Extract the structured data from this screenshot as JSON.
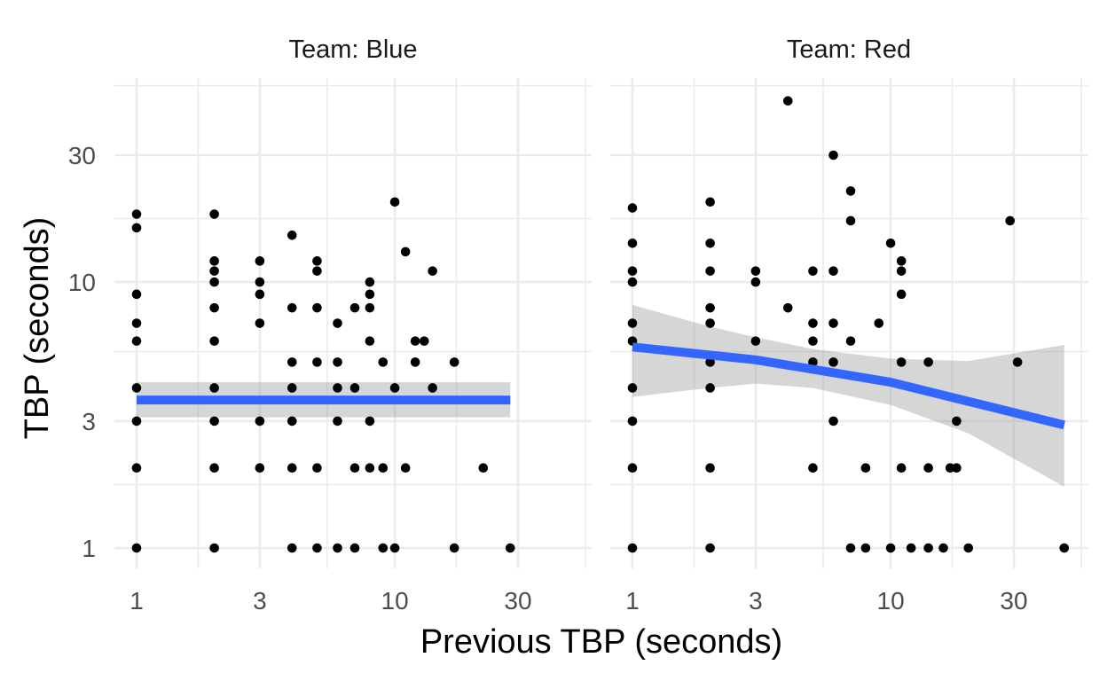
{
  "chart_data": {
    "type": "scatter",
    "xlabel": "Previous TBP (seconds)",
    "ylabel": "TBP (seconds)",
    "scale": "log10",
    "grid": true,
    "x_ticks": [
      1,
      3,
      10,
      30
    ],
    "x_tick_labels": [
      "1",
      "3",
      "10",
      "30"
    ],
    "y_ticks": [
      1,
      3,
      10,
      30
    ],
    "y_tick_labels": [
      "1",
      "3",
      "10",
      "30"
    ],
    "xlim": [
      0.85,
      60
    ],
    "ylim": [
      0.85,
      55
    ],
    "colors": {
      "points": "#000000",
      "fit_line": "#3366FF",
      "ribbon": "#999999"
    },
    "panels": [
      {
        "title": "Team: Blue",
        "points": [
          [
            1,
            1
          ],
          [
            1,
            2
          ],
          [
            1,
            3
          ],
          [
            1,
            4
          ],
          [
            1,
            6
          ],
          [
            1,
            7
          ],
          [
            1,
            9
          ],
          [
            1,
            16
          ],
          [
            1,
            18
          ],
          [
            2,
            1
          ],
          [
            2,
            2
          ],
          [
            2,
            3
          ],
          [
            2,
            4
          ],
          [
            2,
            6
          ],
          [
            2,
            8
          ],
          [
            2,
            10
          ],
          [
            2,
            11
          ],
          [
            2,
            12
          ],
          [
            2,
            18
          ],
          [
            3,
            2
          ],
          [
            3,
            3
          ],
          [
            3,
            7
          ],
          [
            3,
            9
          ],
          [
            3,
            10
          ],
          [
            3,
            12
          ],
          [
            4,
            1
          ],
          [
            4,
            2
          ],
          [
            4,
            3
          ],
          [
            4,
            4
          ],
          [
            4,
            5
          ],
          [
            4,
            8
          ],
          [
            4,
            15
          ],
          [
            5,
            1
          ],
          [
            5,
            2
          ],
          [
            5,
            5
          ],
          [
            5,
            8
          ],
          [
            5,
            11
          ],
          [
            5,
            12
          ],
          [
            6,
            1
          ],
          [
            6,
            3
          ],
          [
            6,
            4
          ],
          [
            6,
            5
          ],
          [
            6,
            7
          ],
          [
            7,
            1
          ],
          [
            7,
            2
          ],
          [
            7,
            4
          ],
          [
            7,
            8
          ],
          [
            8,
            2
          ],
          [
            8,
            3
          ],
          [
            8,
            6
          ],
          [
            8,
            8
          ],
          [
            8,
            9
          ],
          [
            8,
            10
          ],
          [
            9,
            1
          ],
          [
            9,
            2
          ],
          [
            9,
            5
          ],
          [
            10,
            1
          ],
          [
            10,
            4
          ],
          [
            10,
            20
          ],
          [
            11,
            2
          ],
          [
            11,
            13
          ],
          [
            12,
            5
          ],
          [
            12,
            6
          ],
          [
            13,
            6
          ],
          [
            14,
            4
          ],
          [
            14,
            11
          ],
          [
            17,
            1
          ],
          [
            17,
            5
          ],
          [
            22,
            2
          ],
          [
            28,
            1
          ]
        ],
        "fit": {
          "x": [
            1,
            28
          ],
          "y": [
            3.6,
            3.6
          ]
        },
        "ribbon": {
          "x": [
            1,
            28
          ],
          "upper": [
            4.2,
            4.2
          ],
          "lower": [
            3.1,
            3.1
          ]
        }
      },
      {
        "title": "Team: Red",
        "points": [
          [
            1,
            1
          ],
          [
            1,
            2
          ],
          [
            1,
            3
          ],
          [
            1,
            4
          ],
          [
            1,
            6
          ],
          [
            1,
            7
          ],
          [
            1,
            10
          ],
          [
            1,
            11
          ],
          [
            1,
            14
          ],
          [
            1,
            19
          ],
          [
            2,
            1
          ],
          [
            2,
            2
          ],
          [
            2,
            4
          ],
          [
            2,
            5
          ],
          [
            2,
            7
          ],
          [
            2,
            8
          ],
          [
            2,
            11
          ],
          [
            2,
            14
          ],
          [
            2,
            20
          ],
          [
            3,
            6
          ],
          [
            3,
            10
          ],
          [
            3,
            11
          ],
          [
            4,
            8
          ],
          [
            4,
            48
          ],
          [
            5,
            2
          ],
          [
            5,
            5
          ],
          [
            5,
            6
          ],
          [
            5,
            7
          ],
          [
            5,
            11
          ],
          [
            6,
            3
          ],
          [
            6,
            5
          ],
          [
            6,
            7
          ],
          [
            6,
            11
          ],
          [
            6,
            30
          ],
          [
            7,
            1
          ],
          [
            7,
            6
          ],
          [
            7,
            17
          ],
          [
            7,
            22
          ],
          [
            8,
            1
          ],
          [
            8,
            2
          ],
          [
            9,
            7
          ],
          [
            10,
            1
          ],
          [
            10,
            14
          ],
          [
            11,
            2
          ],
          [
            11,
            5
          ],
          [
            11,
            9
          ],
          [
            11,
            11
          ],
          [
            11,
            12
          ],
          [
            12,
            1
          ],
          [
            14,
            1
          ],
          [
            14,
            2
          ],
          [
            14,
            5
          ],
          [
            16,
            1
          ],
          [
            17,
            2
          ],
          [
            18,
            2
          ],
          [
            18,
            3
          ],
          [
            20,
            1
          ],
          [
            29,
            17
          ],
          [
            31,
            5
          ],
          [
            47,
            1
          ]
        ],
        "fit": {
          "x": [
            1,
            3,
            10,
            47
          ],
          "y": [
            5.7,
            5.1,
            4.2,
            2.9
          ]
        },
        "ribbon": {
          "x": [
            1,
            2,
            3,
            5,
            10,
            20,
            47
          ],
          "upper": [
            8.2,
            6.8,
            6.2,
            5.6,
            5.15,
            5.05,
            5.8
          ],
          "lower": [
            3.7,
            4.0,
            4.15,
            4.0,
            3.45,
            2.7,
            1.7
          ]
        }
      }
    ]
  }
}
